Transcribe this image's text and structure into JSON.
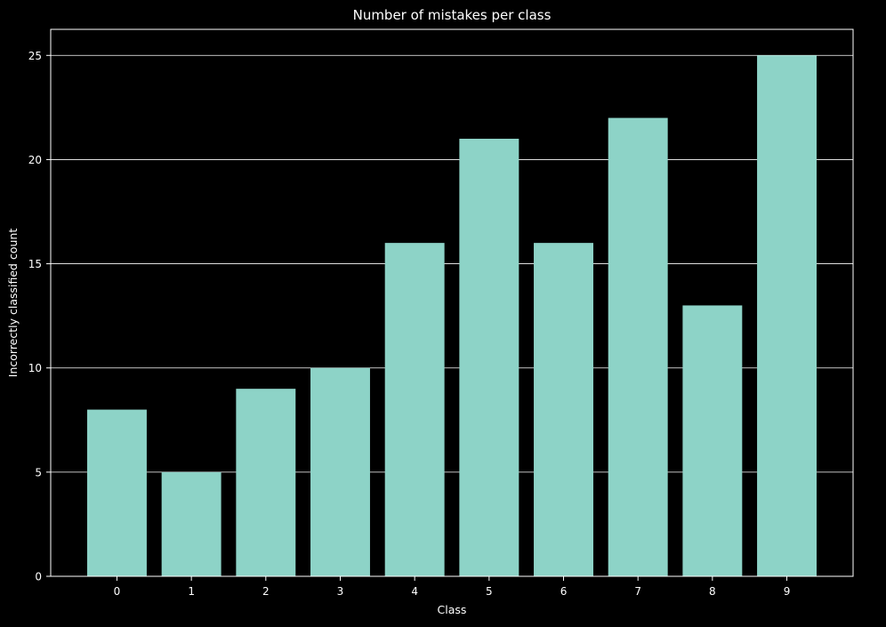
{
  "chart_data": {
    "type": "bar",
    "title": "Number of mistakes per class",
    "xlabel": "Class",
    "ylabel": "Incorrectly classified count",
    "categories": [
      "0",
      "1",
      "2",
      "3",
      "4",
      "5",
      "6",
      "7",
      "8",
      "9"
    ],
    "values": [
      8,
      5,
      9,
      10,
      16,
      21,
      16,
      22,
      13,
      25
    ],
    "ylim": [
      0,
      26.25
    ],
    "yticks": [
      0,
      5,
      10,
      15,
      20,
      25
    ],
    "grid": "y-axis on",
    "bar_color": "#8dd3c7",
    "background_color": "#000000",
    "text_color": "#ffffff",
    "grid_color": "#ffffff"
  }
}
